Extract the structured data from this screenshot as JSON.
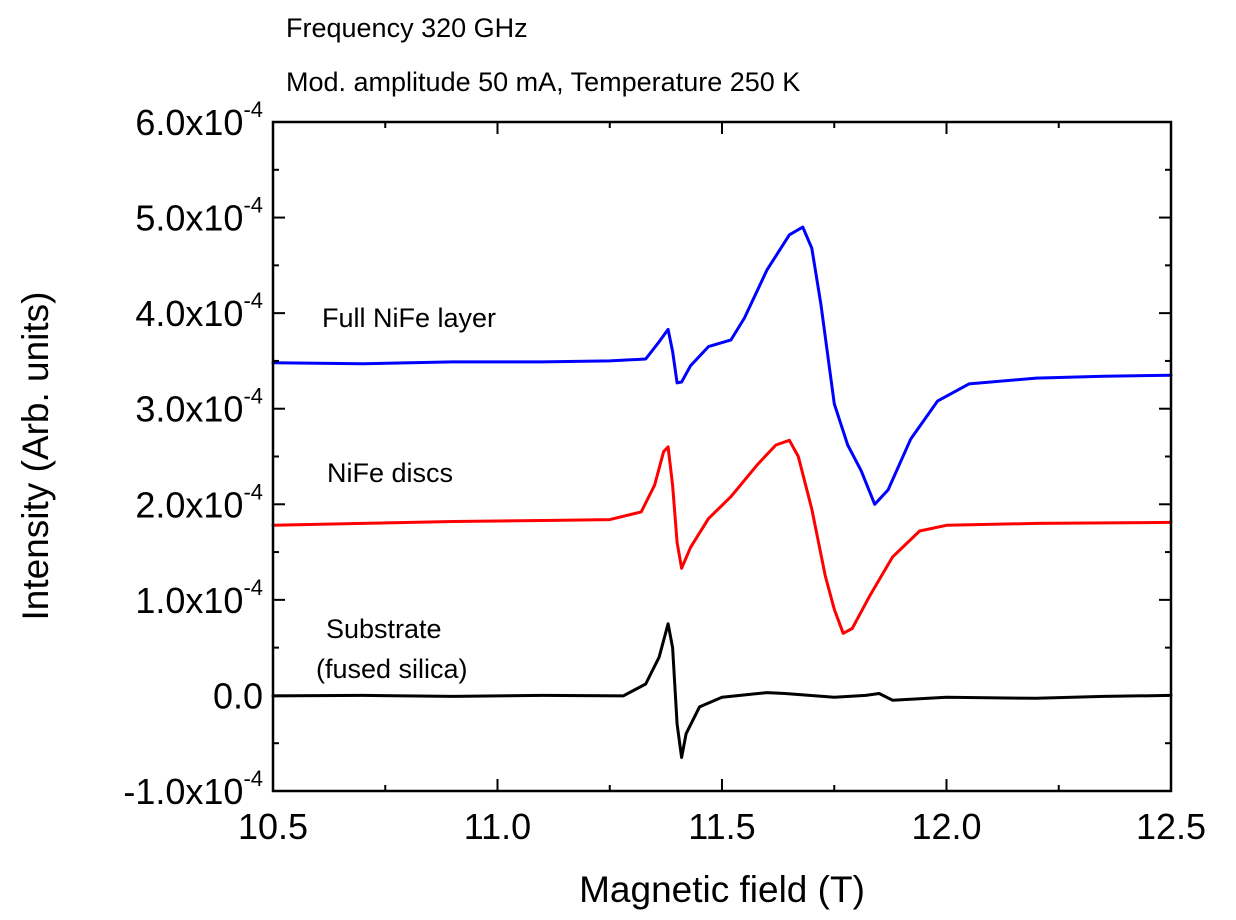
{
  "chart_data": {
    "type": "line",
    "title_lines": [
      "Frequency 320 GHz",
      "Mod. amplitude 50 mA, Temperature 250 K"
    ],
    "xlabel": "Magnetic field (T)",
    "ylabel": "Intensity (Arb. units)",
    "xlim": [
      10.5,
      12.5
    ],
    "ylim": [
      -0.0001,
      0.0006
    ],
    "x_ticks": [
      10.5,
      11.0,
      11.5,
      12.0,
      12.5
    ],
    "x_tick_labels": [
      "10.5",
      "11.0",
      "11.5",
      "12.0",
      "12.5"
    ],
    "y_ticks": [
      {
        "value": -0.0001,
        "mantissa": "-1.0x10",
        "exponent": "-4"
      },
      {
        "value": 0.0,
        "mantissa": "0.0",
        "exponent": ""
      },
      {
        "value": 0.0001,
        "mantissa": "1.0x10",
        "exponent": "-4"
      },
      {
        "value": 0.0002,
        "mantissa": "2.0x10",
        "exponent": "-4"
      },
      {
        "value": 0.0003,
        "mantissa": "3.0x10",
        "exponent": "-4"
      },
      {
        "value": 0.0004,
        "mantissa": "4.0x10",
        "exponent": "-4"
      },
      {
        "value": 0.0005,
        "mantissa": "5.0x10",
        "exponent": "-4"
      },
      {
        "value": 0.0006,
        "mantissa": "6.0x10",
        "exponent": "-4"
      }
    ],
    "grid": false,
    "series": [
      {
        "label_lines": [
          "Full NiFe layer"
        ],
        "color": "#0000ff",
        "points": [
          [
            10.5,
            0.000348
          ],
          [
            10.7,
            0.000347
          ],
          [
            10.9,
            0.000349
          ],
          [
            11.1,
            0.000349
          ],
          [
            11.25,
            0.00035
          ],
          [
            11.33,
            0.000352
          ],
          [
            11.36,
            0.00037
          ],
          [
            11.38,
            0.000383
          ],
          [
            11.39,
            0.00036
          ],
          [
            11.4,
            0.000327
          ],
          [
            11.41,
            0.000328
          ],
          [
            11.43,
            0.000345
          ],
          [
            11.47,
            0.000365
          ],
          [
            11.52,
            0.000372
          ],
          [
            11.55,
            0.000395
          ],
          [
            11.6,
            0.000445
          ],
          [
            11.65,
            0.000482
          ],
          [
            11.68,
            0.00049
          ],
          [
            11.7,
            0.000468
          ],
          [
            11.72,
            0.00041
          ],
          [
            11.75,
            0.000305
          ],
          [
            11.78,
            0.000262
          ],
          [
            11.81,
            0.000235
          ],
          [
            11.84,
            0.0002
          ],
          [
            11.87,
            0.000215
          ],
          [
            11.92,
            0.000268
          ],
          [
            11.98,
            0.000308
          ],
          [
            12.05,
            0.000326
          ],
          [
            12.2,
            0.000332
          ],
          [
            12.35,
            0.000334
          ],
          [
            12.5,
            0.000335
          ]
        ]
      },
      {
        "label_lines": [
          "NiFe discs"
        ],
        "color": "#ff0000",
        "points": [
          [
            10.5,
            0.000178
          ],
          [
            10.7,
            0.00018
          ],
          [
            10.9,
            0.000182
          ],
          [
            11.1,
            0.000183
          ],
          [
            11.25,
            0.000184
          ],
          [
            11.32,
            0.000192
          ],
          [
            11.35,
            0.00022
          ],
          [
            11.37,
            0.000255
          ],
          [
            11.38,
            0.00026
          ],
          [
            11.39,
            0.00022
          ],
          [
            11.4,
            0.00016
          ],
          [
            11.41,
            0.000133
          ],
          [
            11.43,
            0.000155
          ],
          [
            11.47,
            0.000185
          ],
          [
            11.52,
            0.000208
          ],
          [
            11.58,
            0.000242
          ],
          [
            11.62,
            0.000262
          ],
          [
            11.65,
            0.000267
          ],
          [
            11.67,
            0.00025
          ],
          [
            11.7,
            0.000195
          ],
          [
            11.73,
            0.000125
          ],
          [
            11.75,
            9e-05
          ],
          [
            11.77,
            6.5e-05
          ],
          [
            11.79,
            7e-05
          ],
          [
            11.83,
            0.000105
          ],
          [
            11.88,
            0.000145
          ],
          [
            11.94,
            0.000172
          ],
          [
            12.0,
            0.000178
          ],
          [
            12.2,
            0.00018
          ],
          [
            12.5,
            0.000181
          ]
        ]
      },
      {
        "label_lines": [
          "Substrate",
          "(fused silica)"
        ],
        "color": "#000000",
        "points": [
          [
            10.5,
            -5e-07
          ],
          [
            10.7,
            0.0
          ],
          [
            10.9,
            -1e-06
          ],
          [
            11.1,
            0.0
          ],
          [
            11.28,
            -5e-07
          ],
          [
            11.33,
            1.2e-05
          ],
          [
            11.36,
            4e-05
          ],
          [
            11.38,
            7.5e-05
          ],
          [
            11.39,
            5e-05
          ],
          [
            11.4,
            -3e-05
          ],
          [
            11.41,
            -6.5e-05
          ],
          [
            11.42,
            -4e-05
          ],
          [
            11.45,
            -1.2e-05
          ],
          [
            11.5,
            -2e-06
          ],
          [
            11.6,
            3e-06
          ],
          [
            11.64,
            2e-06
          ],
          [
            11.75,
            -2e-06
          ],
          [
            11.82,
            0.0
          ],
          [
            11.85,
            2e-06
          ],
          [
            11.88,
            -5e-06
          ],
          [
            12.0,
            -2e-06
          ],
          [
            12.2,
            -3e-06
          ],
          [
            12.35,
            -1e-06
          ],
          [
            12.5,
            0.0
          ]
        ]
      }
    ]
  }
}
